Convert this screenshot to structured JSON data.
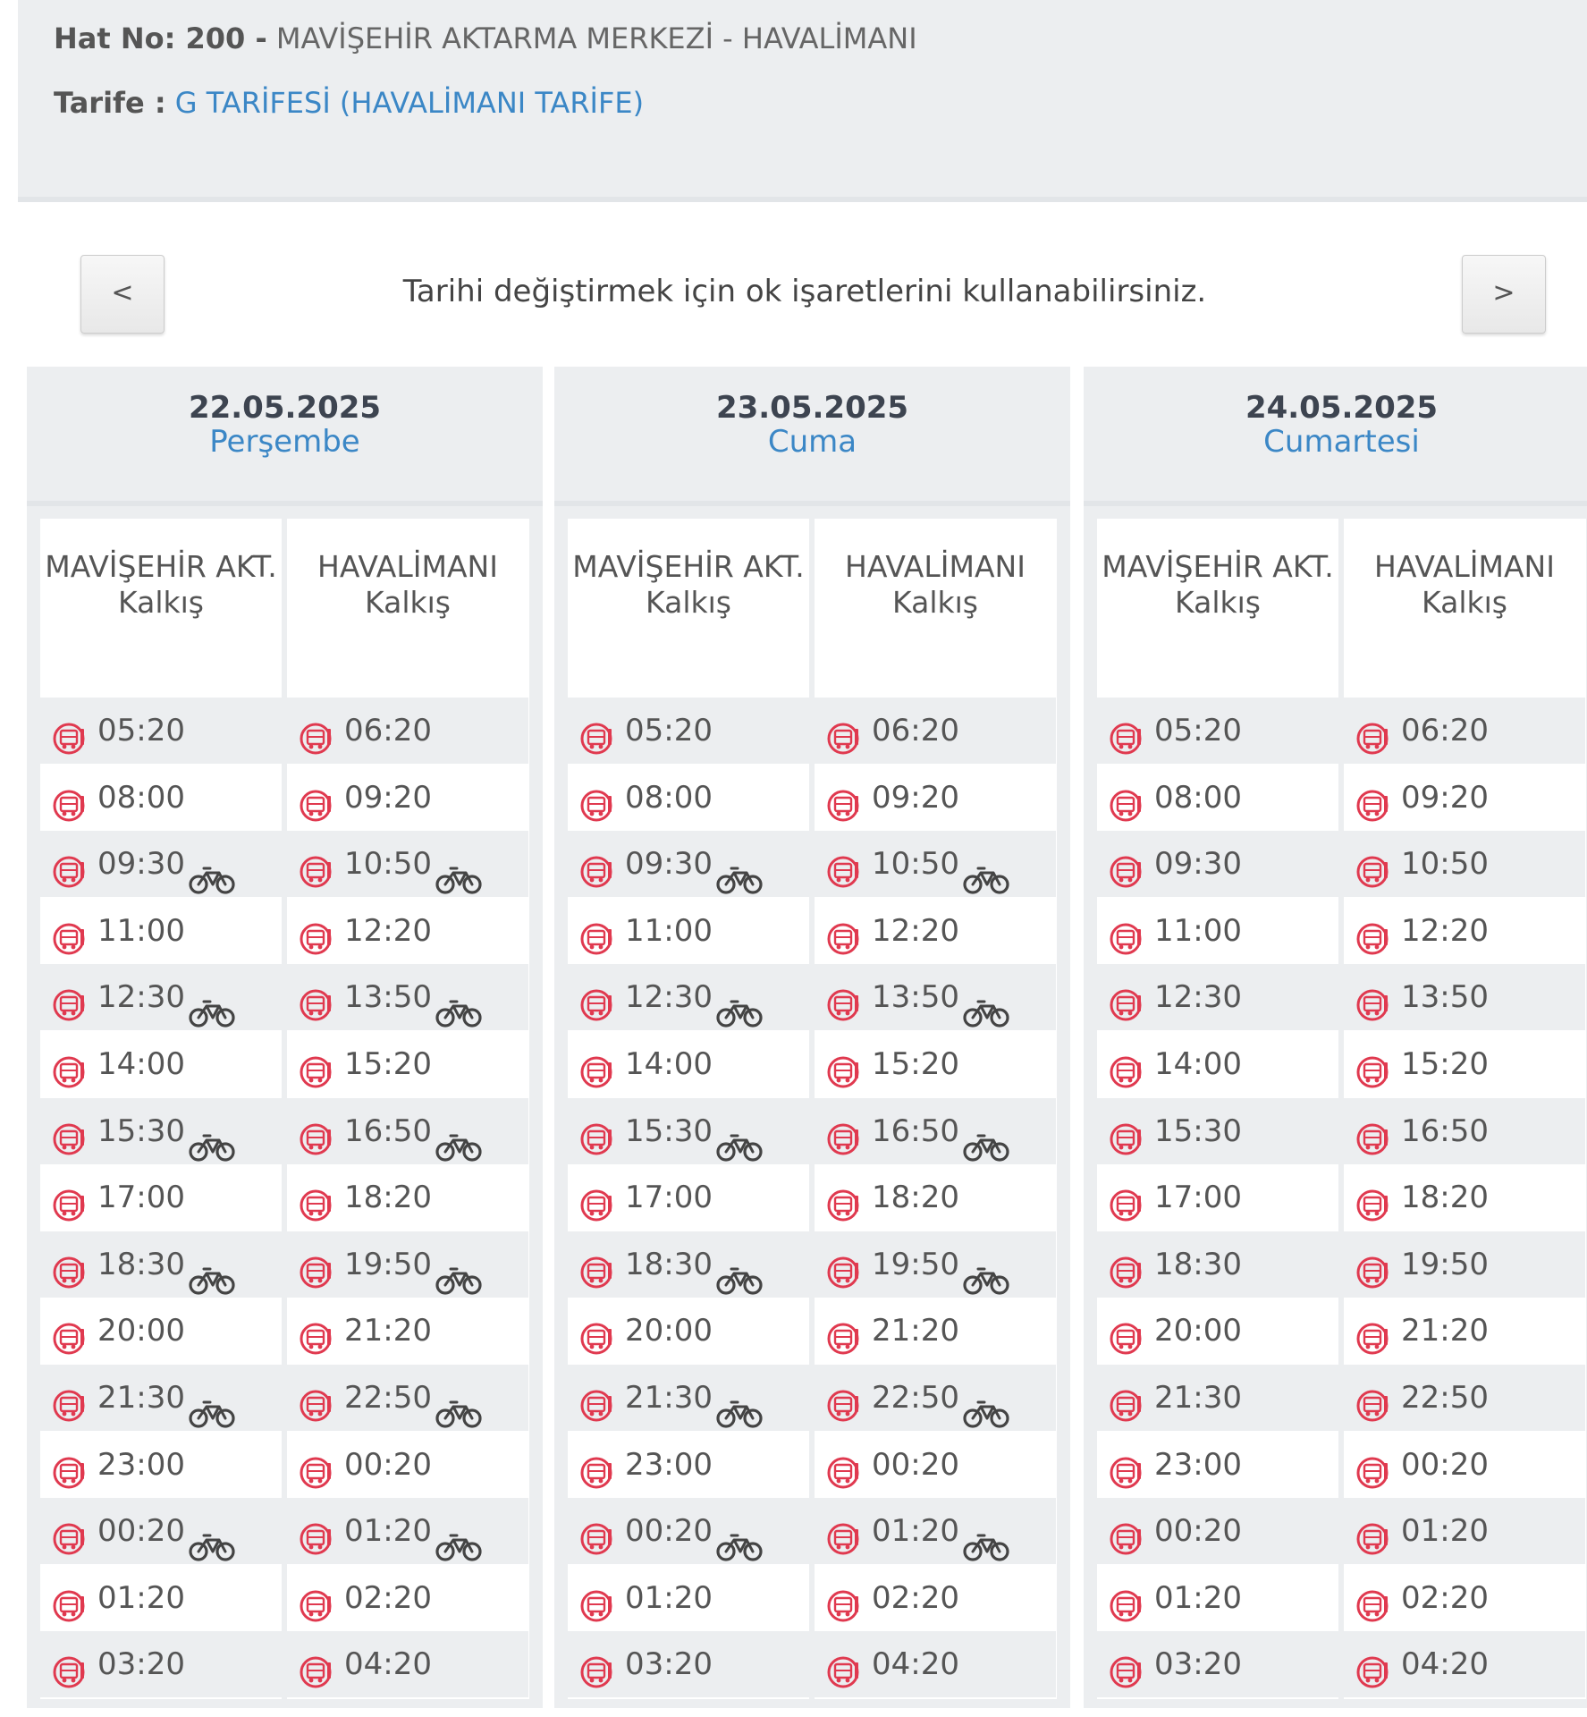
{
  "header": {
    "line_label": "Hat No: 200 -",
    "line_name": "MAVİŞEHİR AKTARMA MERKEZİ - HAVALİMANI",
    "tariff_label": "Tarife :",
    "tariff_value": "G TARİFESİ (HAVALİMANI TARİFE)"
  },
  "nav": {
    "prev_label": "<",
    "next_label": ">",
    "hint": "Tarihi değiştirmek için ok işaretlerini kullanabilirsiniz."
  },
  "columns": {
    "dep1": "MAVİŞEHİR AKT. Kalkış",
    "dep2": "HAVALİMANI Kalkış"
  },
  "days": [
    {
      "date": "22.05.2025",
      "weekday": "Perşembe",
      "from_mavisehir": [
        "05:20",
        "08:00",
        "09:30",
        "11:00",
        "12:30",
        "14:00",
        "15:30",
        "17:00",
        "18:30",
        "20:00",
        "21:30",
        "23:00",
        "00:20",
        "01:20",
        "03:20"
      ],
      "from_havalimani": [
        "06:20",
        "09:20",
        "10:50",
        "12:20",
        "13:50",
        "15:20",
        "16:50",
        "18:20",
        "19:50",
        "21:20",
        "22:50",
        "00:20",
        "01:20",
        "02:20",
        "04:20"
      ],
      "bike_rows": [
        2,
        4,
        6,
        8,
        10,
        12
      ]
    },
    {
      "date": "23.05.2025",
      "weekday": "Cuma",
      "from_mavisehir": [
        "05:20",
        "08:00",
        "09:30",
        "11:00",
        "12:30",
        "14:00",
        "15:30",
        "17:00",
        "18:30",
        "20:00",
        "21:30",
        "23:00",
        "00:20",
        "01:20",
        "03:20"
      ],
      "from_havalimani": [
        "06:20",
        "09:20",
        "10:50",
        "12:20",
        "13:50",
        "15:20",
        "16:50",
        "18:20",
        "19:50",
        "21:20",
        "22:50",
        "00:20",
        "01:20",
        "02:20",
        "04:20"
      ],
      "bike_rows": [
        2,
        4,
        6,
        8,
        10,
        12
      ]
    },
    {
      "date": "24.05.2025",
      "weekday": "Cumartesi",
      "from_mavisehir": [
        "05:20",
        "08:00",
        "09:30",
        "11:00",
        "12:30",
        "14:00",
        "15:30",
        "17:00",
        "18:30",
        "20:00",
        "21:30",
        "23:00",
        "00:20",
        "01:20",
        "03:20"
      ],
      "from_havalimani": [
        "06:20",
        "09:20",
        "10:50",
        "12:20",
        "13:50",
        "15:20",
        "16:50",
        "18:20",
        "19:50",
        "21:20",
        "22:50",
        "00:20",
        "01:20",
        "02:20",
        "04:20"
      ],
      "bike_rows": []
    }
  ],
  "icons": {
    "trip": "bus-accessible-icon",
    "bike": "bicycle-icon"
  },
  "colors": {
    "accent": "#3b87c6",
    "bus_icon": "#e0394f",
    "panel": "#eceef0"
  }
}
